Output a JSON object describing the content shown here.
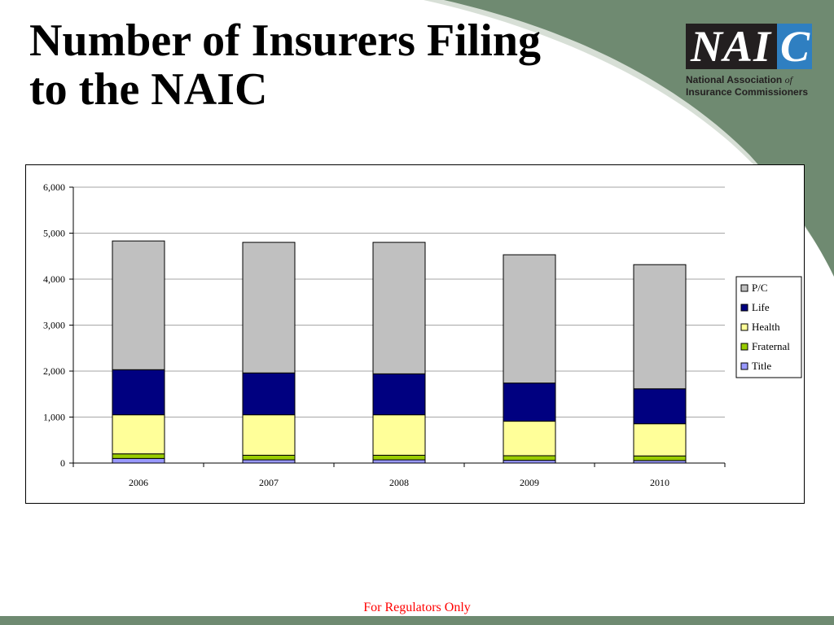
{
  "slide": {
    "title_line1": "Number of Insurers Filing",
    "title_line2": "to the NAIC",
    "footer": "For Regulators Only",
    "logo": {
      "mark": "NAI",
      "mark_accent": "C",
      "sub_line1": "National Association",
      "sub_line1_italic": "of",
      "sub_line2": "Insurance Commissioners"
    }
  },
  "colors": {
    "swoosh": "#6f8a71",
    "swoosh_light": "#d7dfd6",
    "logo_blue": "#2f7fc1",
    "footer_text": "#ff0000"
  },
  "chart_data": {
    "type": "bar",
    "stacked": true,
    "categories": [
      "2006",
      "2007",
      "2008",
      "2009",
      "2010"
    ],
    "series": [
      {
        "name": "Title",
        "color": "#9999ff",
        "values": [
          100,
          70,
          70,
          60,
          55
        ]
      },
      {
        "name": "Fraternal",
        "color": "#99cc00",
        "values": [
          100,
          100,
          100,
          100,
          100
        ]
      },
      {
        "name": "Health",
        "color": "#ffff99",
        "values": [
          850,
          880,
          880,
          750,
          700
        ]
      },
      {
        "name": "Life",
        "color": "#000080",
        "values": [
          980,
          910,
          890,
          830,
          760
        ]
      },
      {
        "name": "P/C",
        "color": "#c0c0c0",
        "values": [
          2800,
          2840,
          2860,
          2790,
          2700
        ]
      }
    ],
    "legend_order": [
      "P/C",
      "Life",
      "Health",
      "Fraternal",
      "Title"
    ],
    "legend_position": "right",
    "ylim": [
      0,
      6000
    ],
    "yticks": [
      0,
      1000,
      2000,
      3000,
      4000,
      5000,
      6000
    ],
    "ytick_labels": [
      "0",
      "1,000",
      "2,000",
      "3,000",
      "4,000",
      "5,000",
      "6,000"
    ],
    "grid": true
  }
}
